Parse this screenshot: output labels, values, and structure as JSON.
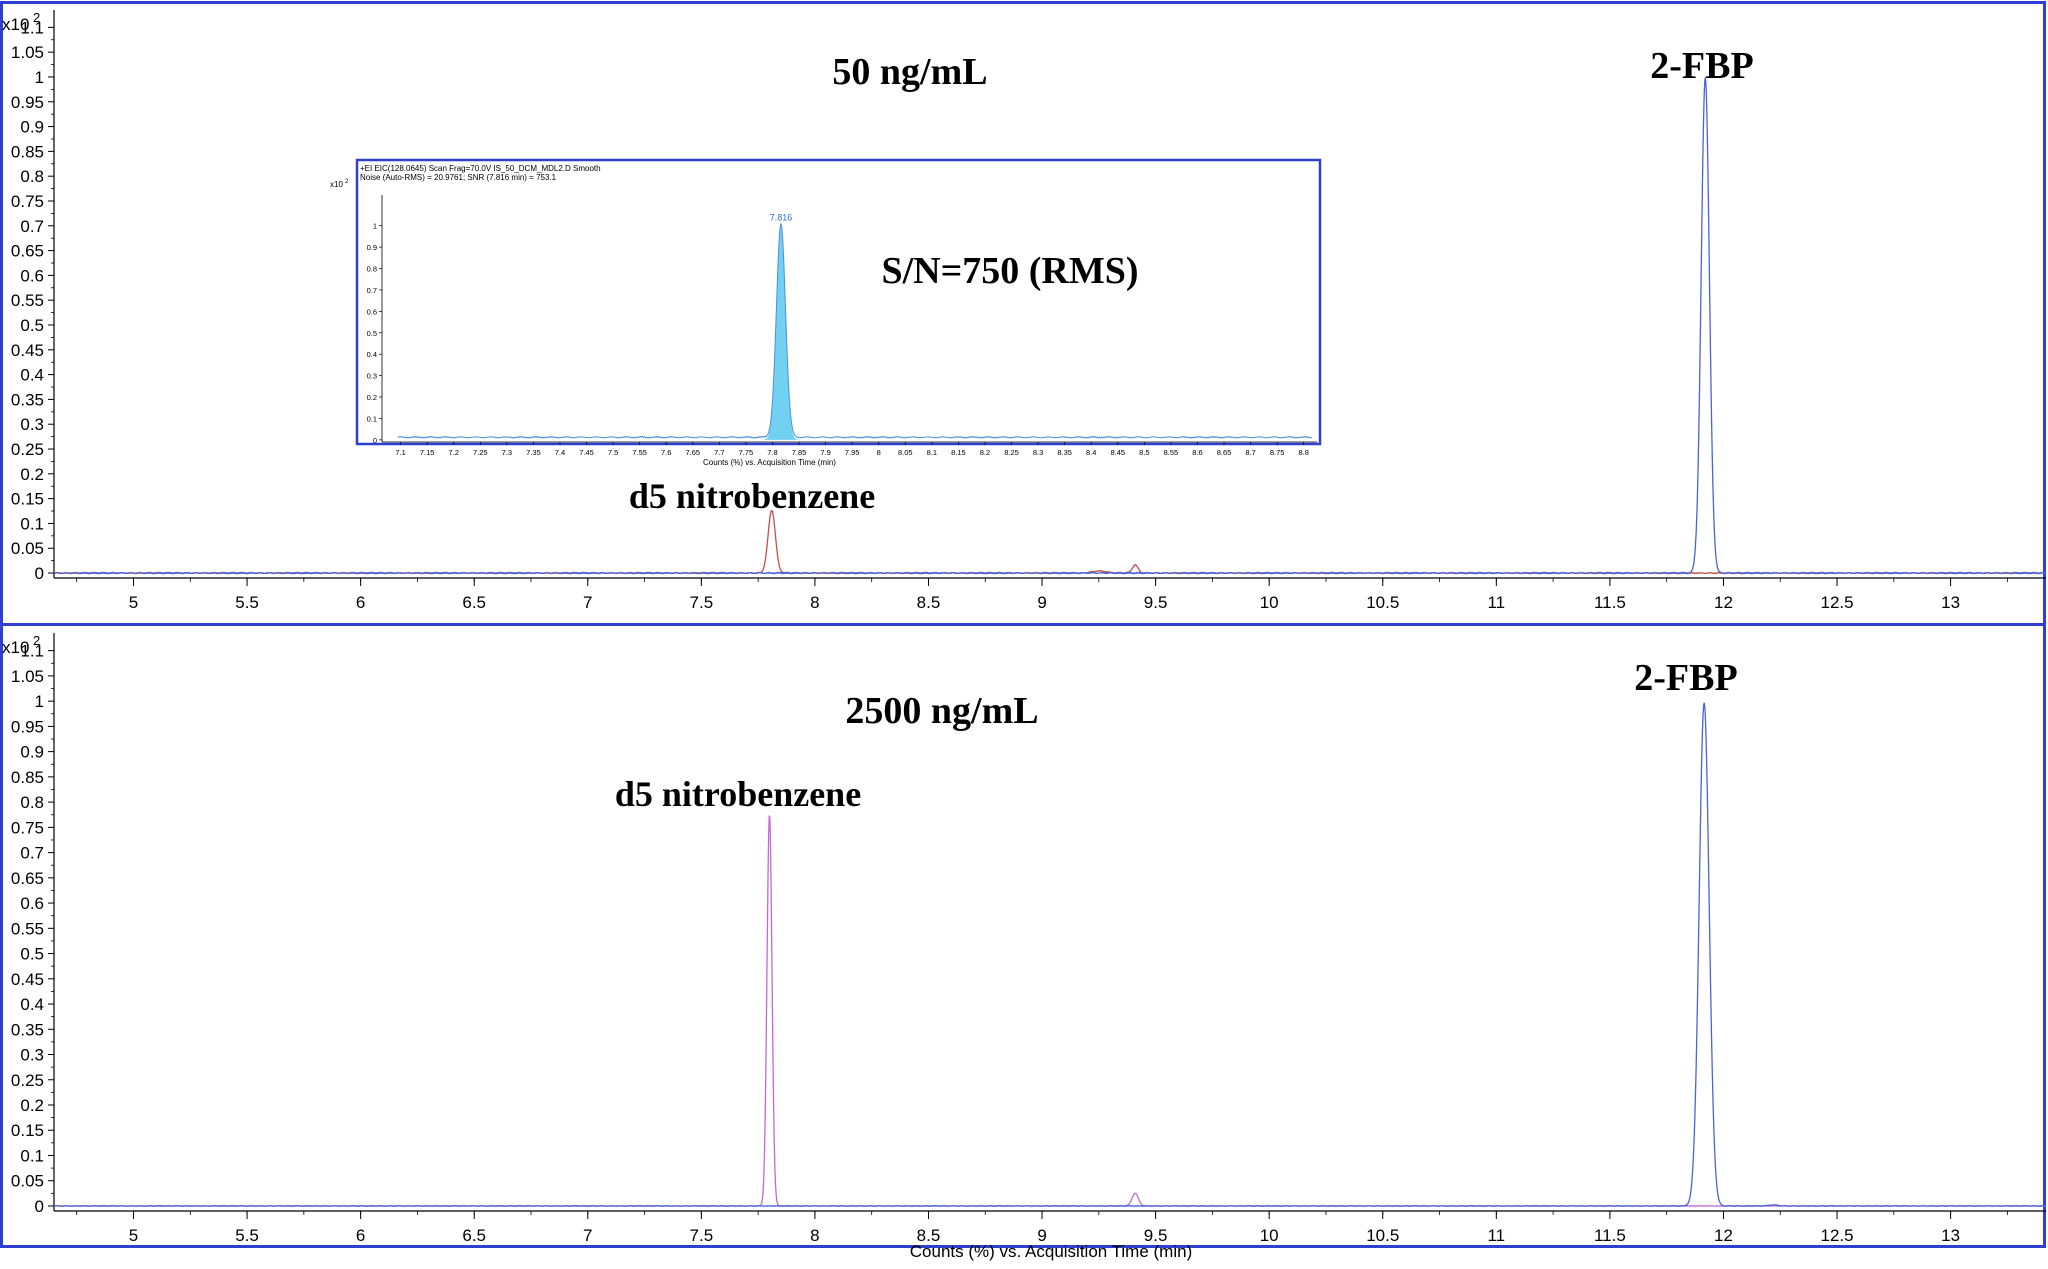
{
  "chart_data": [
    {
      "type": "line",
      "title": "",
      "xlabel": "",
      "ylabel": "",
      "y_multiplier_label": "x10",
      "y_multiplier_exp": "2",
      "xlim": [
        4.65,
        13.42
      ],
      "ylim": [
        -0.01,
        1.135
      ],
      "x_ticks": [
        "5",
        "5.5",
        "6",
        "6.5",
        "7",
        "7.5",
        "8",
        "8.5",
        "9",
        "9.5",
        "10",
        "10.5",
        "11",
        "11.5",
        "12",
        "12.5",
        "13"
      ],
      "y_ticks": [
        "0",
        "0.05",
        "0.1",
        "0.15",
        "0.2",
        "0.25",
        "0.3",
        "0.35",
        "0.4",
        "0.45",
        "0.5",
        "0.55",
        "0.6",
        "0.65",
        "0.7",
        "0.75",
        "0.8",
        "0.85",
        "0.9",
        "0.95",
        "1",
        "1.05",
        "1.1"
      ],
      "series": [
        {
          "color": "#c0504d",
          "peaks": [
            {
              "x": 7.81,
              "h": 0.127,
              "w": 0.016
            },
            {
              "x": 9.25,
              "h": 0.004,
              "w": 0.03
            },
            {
              "x": 9.41,
              "h": 0.016,
              "w": 0.013
            }
          ]
        },
        {
          "color": "#4a63d8",
          "peaks": [
            {
              "x": 11.92,
              "h": 1.0,
              "w": 0.018
            }
          ]
        }
      ],
      "annotations": {
        "concentration": "50 ng/mL",
        "peak_a": "d5 nitrobenzene",
        "peak_b": "2-FBP"
      },
      "inset": {
        "type": "area",
        "header_line1": "+EI EIC(128.0645) Scan Frag=70.0V IS_50_DCM_MDL2.D  Smooth",
        "header_line2": "Noise (Auto-RMS) = 20.9761; SNR (7.816 min) = 753.1",
        "y_multiplier_label": "x10",
        "y_multiplier_exp": "2",
        "xlabel": "Counts (%) vs. Acquisition Time (min)",
        "xlim": [
          7.065,
          8.825
        ],
        "ylim": [
          -0.01,
          1.12
        ],
        "x_ticks": [
          "7.1",
          "7.15",
          "7.2",
          "7.25",
          "7.3",
          "7.35",
          "7.4",
          "7.45",
          "7.5",
          "7.55",
          "7.6",
          "7.65",
          "7.7",
          "7.75",
          "7.8",
          "7.85",
          "7.9",
          "7.95",
          "8",
          "8.05",
          "8.1",
          "8.15",
          "8.2",
          "8.25",
          "8.3",
          "8.35",
          "8.4",
          "8.45",
          "8.5",
          "8.55",
          "8.6",
          "8.65",
          "8.7",
          "8.75",
          "8.8"
        ],
        "y_ticks": [
          "0",
          "0.1",
          "0.2",
          "0.3",
          "0.4",
          "0.5",
          "0.6",
          "0.7",
          "0.8",
          "0.9",
          "1"
        ],
        "peak": {
          "x": 7.816,
          "h": 1.0,
          "w": 0.0085
        },
        "peak_label": "7.816",
        "snr_annotation": "S/N=750 (RMS)",
        "fill": "#72d0f0",
        "line": "#4a90d9"
      }
    },
    {
      "type": "line",
      "title": "",
      "xlabel": "Counts (%) vs. Acquisition Time (min)",
      "ylabel": "",
      "y_multiplier_label": "x10",
      "y_multiplier_exp": "2",
      "xlim": [
        4.65,
        13.42
      ],
      "ylim": [
        -0.01,
        1.135
      ],
      "x_ticks": [
        "5",
        "5.5",
        "6",
        "6.5",
        "7",
        "7.5",
        "8",
        "8.5",
        "9",
        "9.5",
        "10",
        "10.5",
        "11",
        "11.5",
        "12",
        "12.5",
        "13"
      ],
      "y_ticks": [
        "0",
        "0.05",
        "0.1",
        "0.15",
        "0.2",
        "0.25",
        "0.3",
        "0.35",
        "0.4",
        "0.45",
        "0.5",
        "0.55",
        "0.6",
        "0.65",
        "0.7",
        "0.75",
        "0.8",
        "0.85",
        "0.9",
        "0.95",
        "1",
        "1.05",
        "1.1"
      ],
      "series": [
        {
          "color": "#c26ad4",
          "peaks": [
            {
              "x": 7.8,
              "h": 0.777,
              "w": 0.011
            },
            {
              "x": 9.41,
              "h": 0.025,
              "w": 0.014
            }
          ]
        },
        {
          "color": "#4a63d8",
          "peaks": [
            {
              "x": 11.915,
              "h": 0.997,
              "w": 0.022
            },
            {
              "x": 12.22,
              "h": 0.002,
              "w": 0.02
            }
          ]
        }
      ],
      "annotations": {
        "concentration": "2500 ng/mL",
        "peak_a": "d5 nitrobenzene",
        "peak_b": "2-FBP"
      }
    }
  ]
}
